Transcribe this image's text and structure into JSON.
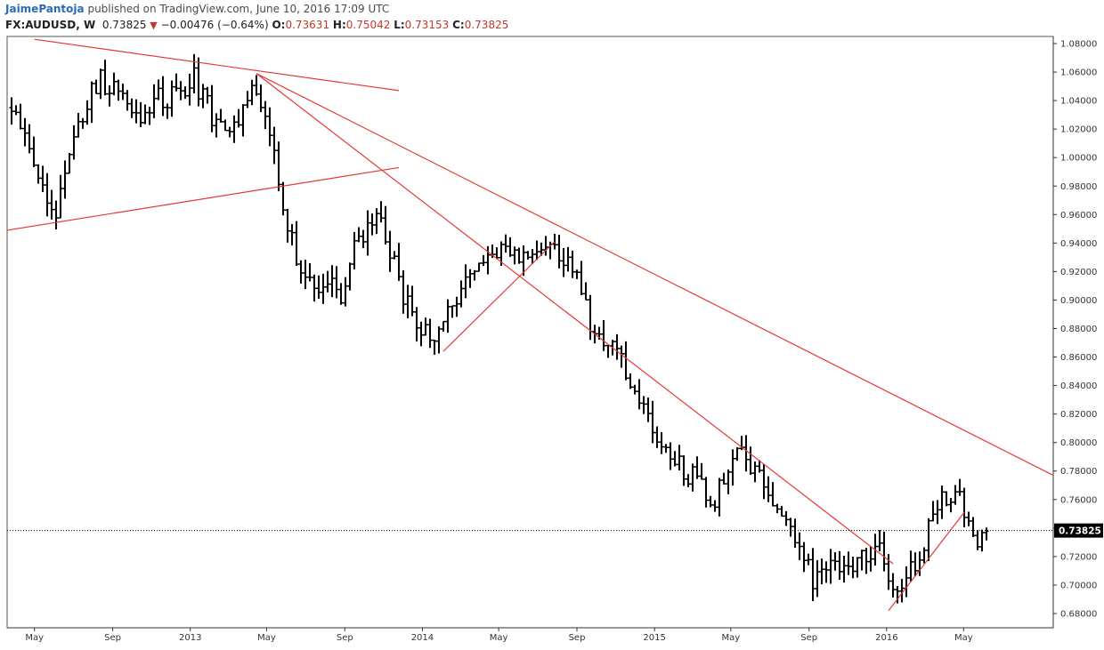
{
  "header": {
    "author": "JaimePantoja",
    "published": "published on TradingView.com, June 10, 2016 17:09 UTC",
    "symbol": "FX:AUDUSD, W",
    "last": "0.73825",
    "change_arrow": "▼",
    "change": "−0.00476 (−0.64%)",
    "o_label": "O:",
    "o_value": "0.73631",
    "h_label": "H:",
    "h_value": "0.75042",
    "l_label": "L:",
    "l_value": "0.73153",
    "c_label": "C:",
    "c_value": "0.73825"
  },
  "chart_data": {
    "type": "ohlc",
    "symbol": "FX:AUDUSD",
    "interval": "W",
    "y_ticks": [
      "0.68000",
      "0.70000",
      "0.72000",
      "0.74000",
      "0.76000",
      "0.78000",
      "0.80000",
      "0.82000",
      "0.84000",
      "0.86000",
      "0.88000",
      "0.90000",
      "0.92000",
      "0.94000",
      "0.96000",
      "0.98000",
      "1.00000",
      "1.02000",
      "1.04000",
      "1.06000",
      "1.08000"
    ],
    "y_range": [
      0.67,
      1.085
    ],
    "x_ticks": [
      "May",
      "Sep",
      "2013",
      "May",
      "Sep",
      "2014",
      "May",
      "Sep",
      "2015",
      "May",
      "Sep",
      "2016",
      "May"
    ],
    "x_tick_dates": [
      "2012-05-01",
      "2012-09-01",
      "2013-01-01",
      "2013-05-01",
      "2013-09-01",
      "2014-01-01",
      "2014-05-01",
      "2014-09-01",
      "2015-01-01",
      "2015-05-01",
      "2015-09-01",
      "2016-01-01",
      "2016-05-01"
    ],
    "x_range": [
      "2012-03-19",
      "2016-09-19"
    ],
    "current_price": "0.73825",
    "current_price_line": "dotted",
    "bar_color": "#000000",
    "trendline_color": "#e53935",
    "anchors": [
      [
        "2012-03-26",
        1.035
      ],
      [
        "2012-05-14",
        0.975
      ],
      [
        "2012-06-04",
        0.965
      ],
      [
        "2012-07-23",
        1.04
      ],
      [
        "2012-08-13",
        1.055
      ],
      [
        "2012-09-10",
        1.045
      ],
      [
        "2012-10-08",
        1.025
      ],
      [
        "2012-11-05",
        1.04
      ],
      [
        "2012-12-24",
        1.045
      ],
      [
        "2013-01-07",
        1.055
      ],
      [
        "2013-02-04",
        1.03
      ],
      [
        "2013-03-04",
        1.02
      ],
      [
        "2013-04-08",
        1.045
      ],
      [
        "2013-04-29",
        1.03
      ],
      [
        "2013-05-20",
        0.985
      ],
      [
        "2013-06-10",
        0.94
      ],
      [
        "2013-07-01",
        0.915
      ],
      [
        "2013-07-15",
        0.905
      ],
      [
        "2013-08-12",
        0.91
      ],
      [
        "2013-08-26",
        0.895
      ],
      [
        "2013-09-16",
        0.935
      ],
      [
        "2013-10-14",
        0.95
      ],
      [
        "2013-10-21",
        0.965
      ],
      [
        "2013-11-11",
        0.935
      ],
      [
        "2013-12-09",
        0.895
      ],
      [
        "2014-01-13",
        0.875
      ],
      [
        "2014-01-27",
        0.88
      ],
      [
        "2014-02-17",
        0.9
      ],
      [
        "2014-03-24",
        0.915
      ],
      [
        "2014-04-14",
        0.935
      ],
      [
        "2014-05-26",
        0.93
      ],
      [
        "2014-07-07",
        0.935
      ],
      [
        "2014-08-04",
        0.93
      ],
      [
        "2014-09-01",
        0.925
      ],
      [
        "2014-09-22",
        0.88
      ],
      [
        "2014-10-13",
        0.875
      ],
      [
        "2014-11-03",
        0.865
      ],
      [
        "2014-11-24",
        0.845
      ],
      [
        "2014-12-22",
        0.815
      ],
      [
        "2015-01-19",
        0.8
      ],
      [
        "2015-02-16",
        0.78
      ],
      [
        "2015-03-16",
        0.77
      ],
      [
        "2015-04-06",
        0.76
      ],
      [
        "2015-05-04",
        0.79
      ],
      [
        "2015-05-18",
        0.795
      ],
      [
        "2015-06-15",
        0.775
      ],
      [
        "2015-07-06",
        0.755
      ],
      [
        "2015-08-03",
        0.735
      ],
      [
        "2015-09-07",
        0.705
      ],
      [
        "2015-10-05",
        0.715
      ],
      [
        "2015-11-02",
        0.715
      ],
      [
        "2015-11-30",
        0.72
      ],
      [
        "2015-12-21",
        0.725
      ],
      [
        "2016-01-11",
        0.695
      ],
      [
        "2016-01-25",
        0.705
      ],
      [
        "2016-02-22",
        0.72
      ],
      [
        "2016-03-14",
        0.755
      ],
      [
        "2016-04-04",
        0.76
      ],
      [
        "2016-04-18",
        0.77
      ],
      [
        "2016-05-02",
        0.75
      ],
      [
        "2016-05-23",
        0.72
      ],
      [
        "2016-06-06",
        0.738
      ]
    ],
    "trendlines": [
      {
        "from": [
          "2012-05-01",
          1.083
        ],
        "to": [
          "2013-11-25",
          1.047
        ]
      },
      {
        "from": [
          "2013-04-15",
          1.059
        ],
        "to": [
          "2016-09-19",
          0.777
        ]
      },
      {
        "from": [
          "2012-03-19",
          0.949
        ],
        "to": [
          "2013-11-25",
          0.993
        ]
      },
      {
        "from": [
          "2013-04-15",
          1.059
        ],
        "to": [
          "2016-01-11",
          0.715
        ]
      },
      {
        "from": [
          "2014-02-03",
          0.864
        ],
        "to": [
          "2014-07-28",
          0.941
        ]
      },
      {
        "from": [
          "2016-01-04",
          0.682
        ],
        "to": [
          "2016-05-02",
          0.751
        ]
      }
    ]
  }
}
